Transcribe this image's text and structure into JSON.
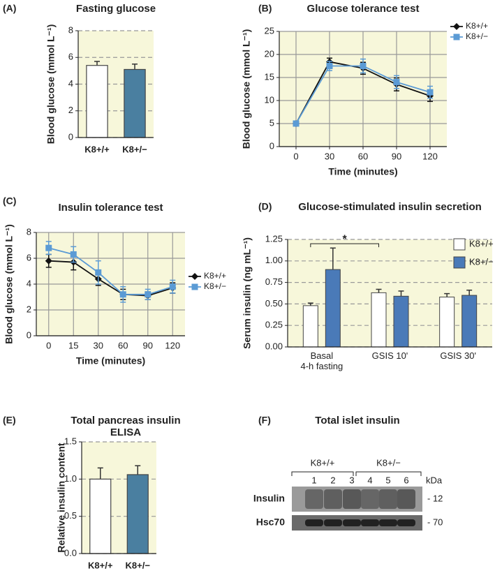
{
  "chart_data": [
    {
      "type": "bar",
      "label": "(A)",
      "title": "Fasting glucose",
      "ylabel": "Blood glucose (mmol L⁻¹)",
      "categories": [
        "K8+/+",
        "K8+/−"
      ],
      "values": [
        5.4,
        5.1
      ],
      "errors": [
        0.3,
        0.4
      ],
      "colors": [
        "#ffffff",
        "#4a7fa0"
      ],
      "ylim": [
        0,
        8
      ],
      "yticks": [
        0,
        2,
        4,
        6,
        8
      ],
      "grid": "dashed",
      "background": "#f7f7da"
    },
    {
      "type": "line",
      "label": "(B)",
      "title": "Glucose tolerance test",
      "ylabel": "Blood glucose (mmol L⁻¹)",
      "xlabel": "Time (minutes)",
      "x": [
        0,
        30,
        60,
        90,
        120
      ],
      "xlim": [
        -15,
        135
      ],
      "xticks": [
        0,
        30,
        60,
        90,
        120
      ],
      "series": [
        {
          "name": "K8+/+",
          "color": "#111111",
          "marker": "diamond",
          "values": [
            5,
            18.4,
            17,
            13.5,
            11
          ],
          "errors": [
            0.3,
            0.8,
            1.3,
            1.4,
            1.2
          ]
        },
        {
          "name": "K8+/−",
          "color": "#5b9bd5",
          "marker": "square",
          "values": [
            5,
            17.5,
            17.5,
            14,
            11.8
          ],
          "errors": [
            0.3,
            1,
            1.5,
            1.4,
            1.3
          ]
        }
      ],
      "ylim": [
        0,
        25
      ],
      "yticks": [
        0,
        5,
        10,
        15,
        20,
        25
      ],
      "grid": "solid",
      "background": "#f7f7da"
    },
    {
      "type": "line",
      "label": "(C)",
      "title": "Insulin tolerance test",
      "ylabel": "Blood glucose (mmol L⁻¹)",
      "xlabel": "Time (minutes)",
      "categories": [
        "0",
        "15",
        "30",
        "60",
        "90",
        "120"
      ],
      "series": [
        {
          "name": "K8+/+",
          "color": "#111111",
          "marker": "diamond",
          "values": [
            5.8,
            5.7,
            4.4,
            3.2,
            3.1,
            3.7
          ],
          "errors": [
            0.5,
            0.6,
            0.5,
            0.4,
            0.3,
            0.4
          ]
        },
        {
          "name": "K8+/−",
          "color": "#5b9bd5",
          "marker": "square",
          "values": [
            6.8,
            6.3,
            4.9,
            3.2,
            3.2,
            3.8
          ],
          "errors": [
            0.5,
            0.6,
            0.9,
            0.6,
            0.4,
            0.5
          ]
        }
      ],
      "ylim": [
        0,
        8
      ],
      "yticks": [
        0,
        2,
        4,
        6,
        8
      ],
      "grid": "solid",
      "background": "#f7f7da"
    },
    {
      "type": "bar",
      "label": "(D)",
      "title": "Glucose-stimulated insulin secretion",
      "ylabel": "Serum insulin (ng mL⁻¹)",
      "categories": [
        "Basal\n4-h fasting",
        "GSIS 10'",
        "GSIS 30'"
      ],
      "series": [
        {
          "name": "K8+/+",
          "color": "#ffffff",
          "values": [
            0.48,
            0.63,
            0.58
          ],
          "errors": [
            0.03,
            0.04,
            0.04
          ]
        },
        {
          "name": "K8+/−",
          "color": "#4a7ab8",
          "values": [
            0.9,
            0.59,
            0.6
          ],
          "errors": [
            0.25,
            0.06,
            0.06
          ]
        }
      ],
      "annotation": "*",
      "ylim": [
        0,
        1.25
      ],
      "yticks": [
        {
          "value": 0,
          "label": "0.00"
        },
        {
          "value": 0.25,
          "label": "0.25"
        },
        {
          "value": 0.5,
          "label": "0.50"
        },
        {
          "value": 0.75,
          "label": "0.75"
        },
        {
          "value": 1,
          "label": "1.00"
        },
        {
          "value": 1.25,
          "label": "1.25"
        }
      ],
      "grid": "dashed",
      "background": "#f7f7da"
    },
    {
      "type": "bar",
      "label": "(E)",
      "title": "Total pancreas insulin\nELISA",
      "ylabel": "Relative insulin content",
      "categories": [
        "K8+/+",
        "K8+/−"
      ],
      "values": [
        1.0,
        1.06
      ],
      "errors": [
        0.15,
        0.12
      ],
      "colors": [
        "#ffffff",
        "#4a7fa0"
      ],
      "ylim": [
        0,
        1.5
      ],
      "yticks": [
        {
          "value": 0,
          "label": "0.0"
        },
        {
          "value": 0.5,
          "label": "0.5"
        },
        {
          "value": 1,
          "label": "1.0"
        },
        {
          "value": 1.5,
          "label": "1.5"
        }
      ],
      "grid": "dashed",
      "background": "#f7f7da"
    },
    {
      "type": "blot",
      "label": "(F)",
      "title": "Total islet insulin",
      "groups": [
        "K8+/+",
        "K8+/−"
      ],
      "lanes": [
        "1",
        "2",
        "3",
        "4",
        "5",
        "6"
      ],
      "unit": "kDa",
      "rows": [
        {
          "name": "Insulin",
          "marker": "- 12"
        },
        {
          "name": "Hsc70",
          "marker": "- 70"
        }
      ]
    }
  ]
}
